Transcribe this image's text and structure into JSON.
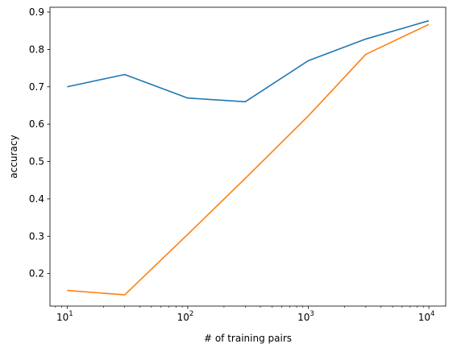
{
  "chart_data": {
    "type": "line",
    "title": "",
    "xlabel": "# of training pairs",
    "ylabel": "accuracy",
    "xscale": "log",
    "xlim": [
      7.2,
      13800
    ],
    "ylim": [
      0.113,
      0.913
    ],
    "xticks": [
      10,
      100,
      1000,
      10000
    ],
    "xtick_labels": [
      {
        "base": "10",
        "exp": "1"
      },
      {
        "base": "10",
        "exp": "2"
      },
      {
        "base": "10",
        "exp": "3"
      },
      {
        "base": "10",
        "exp": "4"
      }
    ],
    "yticks": [
      0.2,
      0.3,
      0.4,
      0.5,
      0.6,
      0.7,
      0.8,
      0.9
    ],
    "ytick_labels": [
      "0.2",
      "0.3",
      "0.4",
      "0.5",
      "0.6",
      "0.7",
      "0.8",
      "0.9"
    ],
    "grid": false,
    "x": [
      10,
      30,
      100,
      300,
      1000,
      3000,
      10000
    ],
    "series": [
      {
        "color": "#1f77b4",
        "values": [
          0.7,
          0.733,
          0.67,
          0.66,
          0.77,
          0.828,
          0.877
        ]
      },
      {
        "color": "#ff7f0e",
        "values": [
          0.155,
          0.143,
          0.305,
          0.455,
          0.622,
          0.787,
          0.867
        ]
      }
    ]
  }
}
